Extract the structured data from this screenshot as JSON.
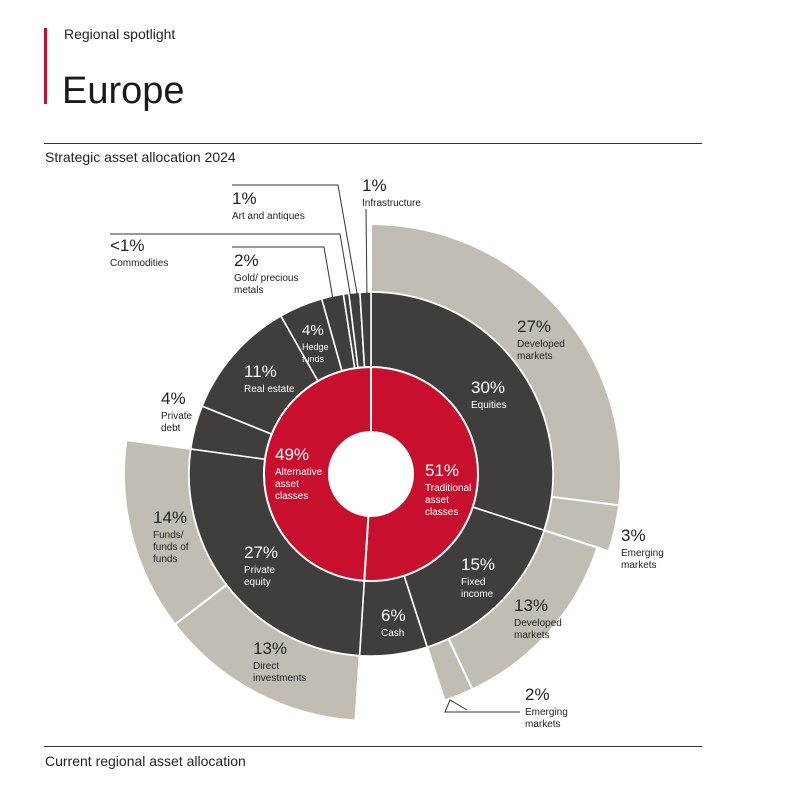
{
  "header": {
    "kicker": "Regional spotlight",
    "title": "Europe"
  },
  "sections": {
    "top_subtitle": "Strategic asset allocation 2024",
    "bottom_subtitle": "Current regional asset allocation"
  },
  "colors": {
    "accent": "#c8102e",
    "dark": "#3f3e3c",
    "light": "#c1bdb2"
  },
  "chart_data": {
    "type": "sunburst",
    "title": "Strategic asset allocation 2024",
    "inner": [
      {
        "label": "Traditional asset classes",
        "pct": "51%",
        "value": 51
      },
      {
        "label": "Alternative asset classes",
        "pct": "49%",
        "value": 49
      }
    ],
    "middle": [
      {
        "label": "Equities",
        "pct": "30%",
        "value": 30,
        "parent": "Traditional asset classes"
      },
      {
        "label": "Fixed income",
        "pct": "15%",
        "value": 15,
        "parent": "Traditional asset classes"
      },
      {
        "label": "Cash",
        "pct": "6%",
        "value": 6,
        "parent": "Traditional asset classes"
      },
      {
        "label": "Private equity",
        "pct": "27%",
        "value": 27,
        "parent": "Alternative asset classes"
      },
      {
        "label": "Private debt",
        "pct": "4%",
        "value": 4,
        "parent": "Alternative asset classes"
      },
      {
        "label": "Real estate",
        "pct": "11%",
        "value": 11,
        "parent": "Alternative asset classes"
      },
      {
        "label": "Hedge funds",
        "pct": "4%",
        "value": 4,
        "parent": "Alternative asset classes"
      },
      {
        "label": "Gold/ precious metals",
        "pct": "2%",
        "value": 2,
        "parent": "Alternative asset classes"
      },
      {
        "label": "Commodities",
        "pct": "<1%",
        "value": 0.5,
        "parent": "Alternative asset classes"
      },
      {
        "label": "Art and antiques",
        "pct": "1%",
        "value": 1,
        "parent": "Alternative asset classes"
      },
      {
        "label": "Infrastructure",
        "pct": "1%",
        "value": 1,
        "parent": "Alternative asset classes"
      }
    ],
    "outer": [
      {
        "label": "Developed markets",
        "pct": "27%",
        "value": 27,
        "parent": "Equities"
      },
      {
        "label": "Emerging markets",
        "pct": "3%",
        "value": 3,
        "parent": "Equities"
      },
      {
        "label": "Developed markets",
        "pct": "13%",
        "value": 13,
        "parent": "Fixed income"
      },
      {
        "label": "Emerging markets",
        "pct": "2%",
        "value": 2,
        "parent": "Fixed income"
      },
      {
        "label": "Direct investments",
        "pct": "13%",
        "value": 13,
        "parent": "Private equity"
      },
      {
        "label": "Funds/ funds of funds",
        "pct": "14%",
        "value": 14,
        "parent": "Private equity"
      }
    ]
  }
}
